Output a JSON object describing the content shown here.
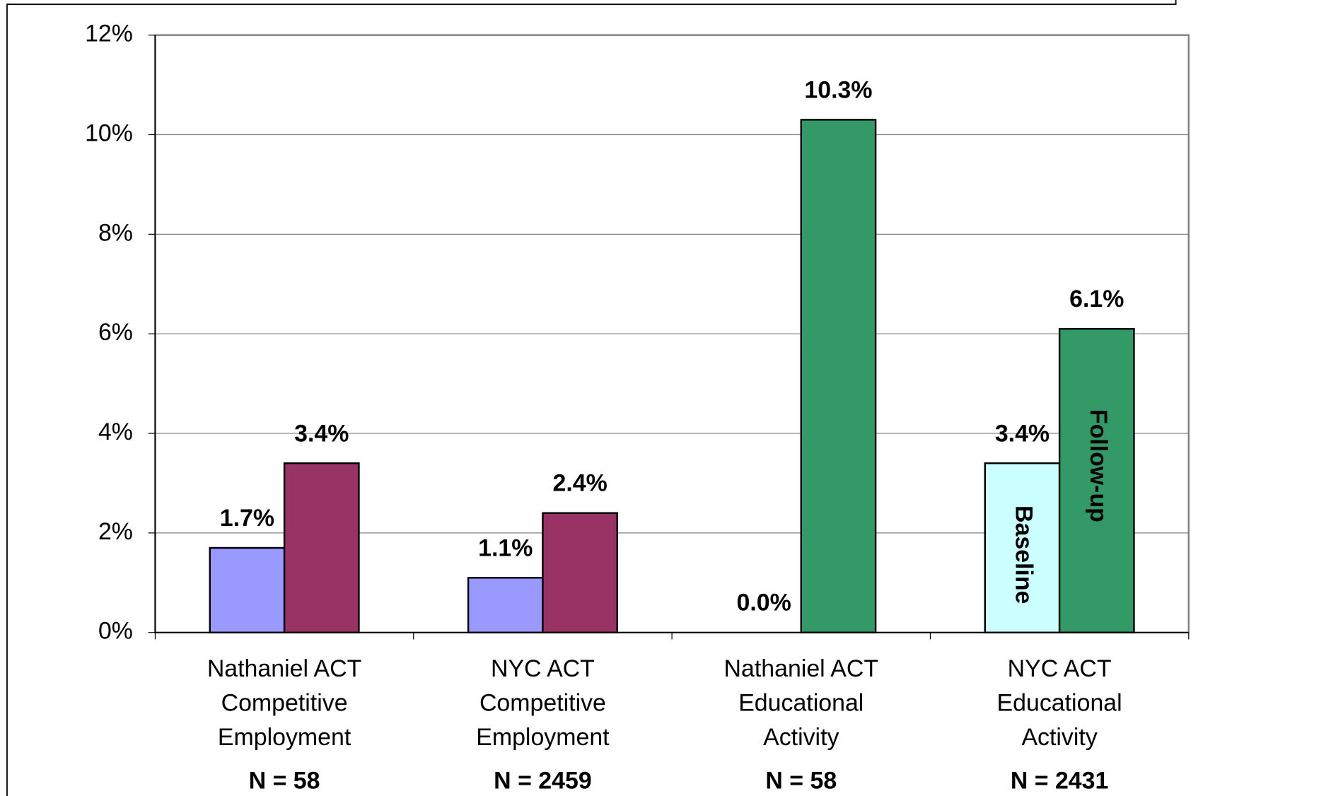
{
  "chart_data": {
    "type": "bar",
    "categories": [
      [
        "Nathaniel ACT",
        "Competitive",
        "Employment"
      ],
      [
        "NYC ACT",
        "Competitive",
        "Employment"
      ],
      [
        "Nathaniel ACT",
        "Educational",
        "Activity"
      ],
      [
        "NYC ACT",
        "Educational",
        "Activity"
      ]
    ],
    "annotations": [
      "N = 58",
      "N = 2459",
      "N = 58",
      "N = 2431"
    ],
    "series": [
      {
        "name": "Baseline",
        "colors": [
          "#9999ff",
          "#9999ff",
          "#9999ff",
          "#ccffff"
        ],
        "values": [
          1.7,
          1.1,
          0.0,
          3.4
        ],
        "value_labels": [
          "1.7%",
          "1.1%",
          "0.0%",
          "3.4%"
        ]
      },
      {
        "name": "Follow-up",
        "colors": [
          "#993366",
          "#993366",
          "#339966",
          "#339966"
        ],
        "values": [
          3.4,
          2.4,
          10.3,
          6.1
        ],
        "value_labels": [
          "3.4%",
          "2.4%",
          "10.3%",
          "6.1%"
        ]
      }
    ],
    "ylim": [
      0,
      12
    ],
    "yticks": [
      {
        "value": 0,
        "label": "0%"
      },
      {
        "value": 2,
        "label": "2%"
      },
      {
        "value": 4,
        "label": "4%"
      },
      {
        "value": 6,
        "label": "6%"
      },
      {
        "value": 8,
        "label": "8%"
      },
      {
        "value": 10,
        "label": "10%"
      },
      {
        "value": 12,
        "label": "12%"
      }
    ],
    "grid": true
  }
}
